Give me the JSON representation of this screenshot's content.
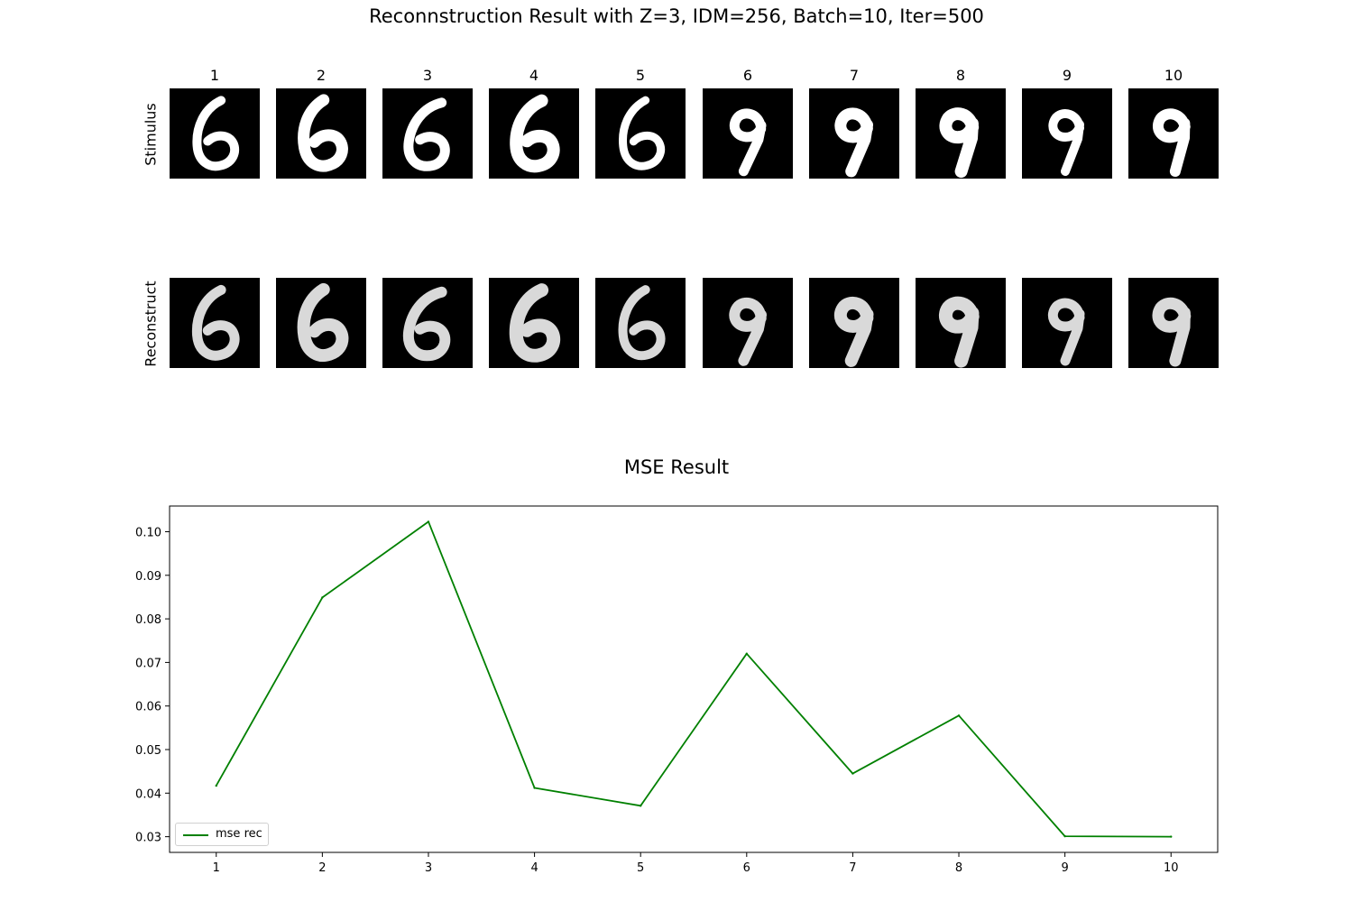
{
  "figure": {
    "suptitle": "Reconnstruction Result with Z=3, IDM=256, Batch=10, Iter=500",
    "row_labels": [
      "Stimulus",
      "Reconstruct"
    ],
    "column_labels": [
      "1",
      "2",
      "3",
      "4",
      "5",
      "6",
      "7",
      "8",
      "9",
      "10"
    ],
    "stimulus_digits": [
      6,
      6,
      6,
      6,
      6,
      9,
      9,
      9,
      9,
      9
    ],
    "reconstruct_digits": [
      6,
      6,
      6,
      6,
      6,
      9,
      9,
      9,
      9,
      9
    ]
  },
  "chart_data": {
    "type": "line",
    "title": "MSE Result",
    "xlabel": "",
    "ylabel": "",
    "x": [
      1,
      2,
      3,
      4,
      5,
      6,
      7,
      8,
      9,
      10
    ],
    "series": [
      {
        "name": "mse rec",
        "color": "#008000",
        "values": [
          0.0417,
          0.0849,
          0.1023,
          0.0412,
          0.0371,
          0.072,
          0.0445,
          0.0578,
          0.0301,
          0.03
        ]
      }
    ],
    "xticks": [
      "1",
      "2",
      "3",
      "4",
      "5",
      "6",
      "7",
      "8",
      "9",
      "10"
    ],
    "yticks": [
      "0.03",
      "0.04",
      "0.05",
      "0.06",
      "0.07",
      "0.08",
      "0.09",
      "0.10"
    ],
    "xlim": [
      0.56,
      10.44
    ],
    "ylim": [
      0.0264,
      0.1059
    ],
    "grid": false,
    "legend_position": "lower-left"
  }
}
